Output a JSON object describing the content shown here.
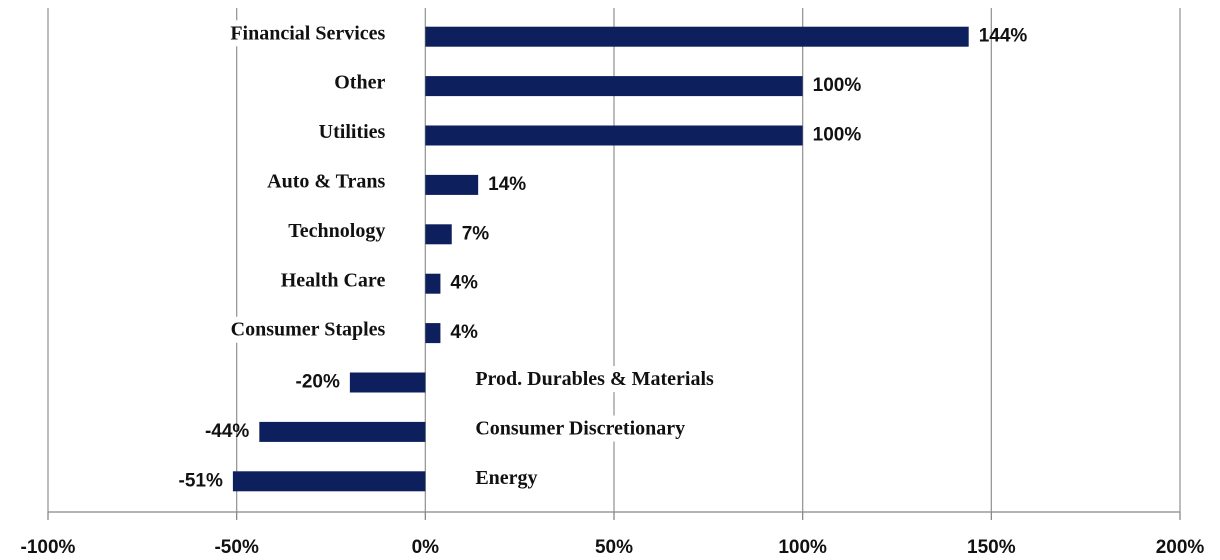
{
  "chart_data": {
    "type": "barh",
    "categories": [
      "Financial Services",
      "Other",
      "Utilities",
      "Auto & Trans",
      "Technology",
      "Health Care",
      "Consumer Staples",
      "Prod. Durables & Materials",
      "Consumer Discretionary",
      "Energy"
    ],
    "values": [
      144,
      100,
      100,
      14,
      7,
      4,
      4,
      -20,
      -44,
      -51
    ],
    "value_labels": [
      "144%",
      "100%",
      "100%",
      "14%",
      "7%",
      "4%",
      "4%",
      "-20%",
      "-44%",
      "-51%"
    ],
    "color": "#0d1f5c",
    "xlim": [
      -100,
      200
    ],
    "xticks": [
      {
        "value": -100,
        "label": "-100%"
      },
      {
        "value": -50,
        "label": "-50%"
      },
      {
        "value": 0,
        "label": "0%"
      },
      {
        "value": 50,
        "label": "50%"
      },
      {
        "value": 100,
        "label": "100%"
      },
      {
        "value": 150,
        "label": "150%"
      },
      {
        "value": 200,
        "label": "200%"
      }
    ],
    "grid": true
  }
}
